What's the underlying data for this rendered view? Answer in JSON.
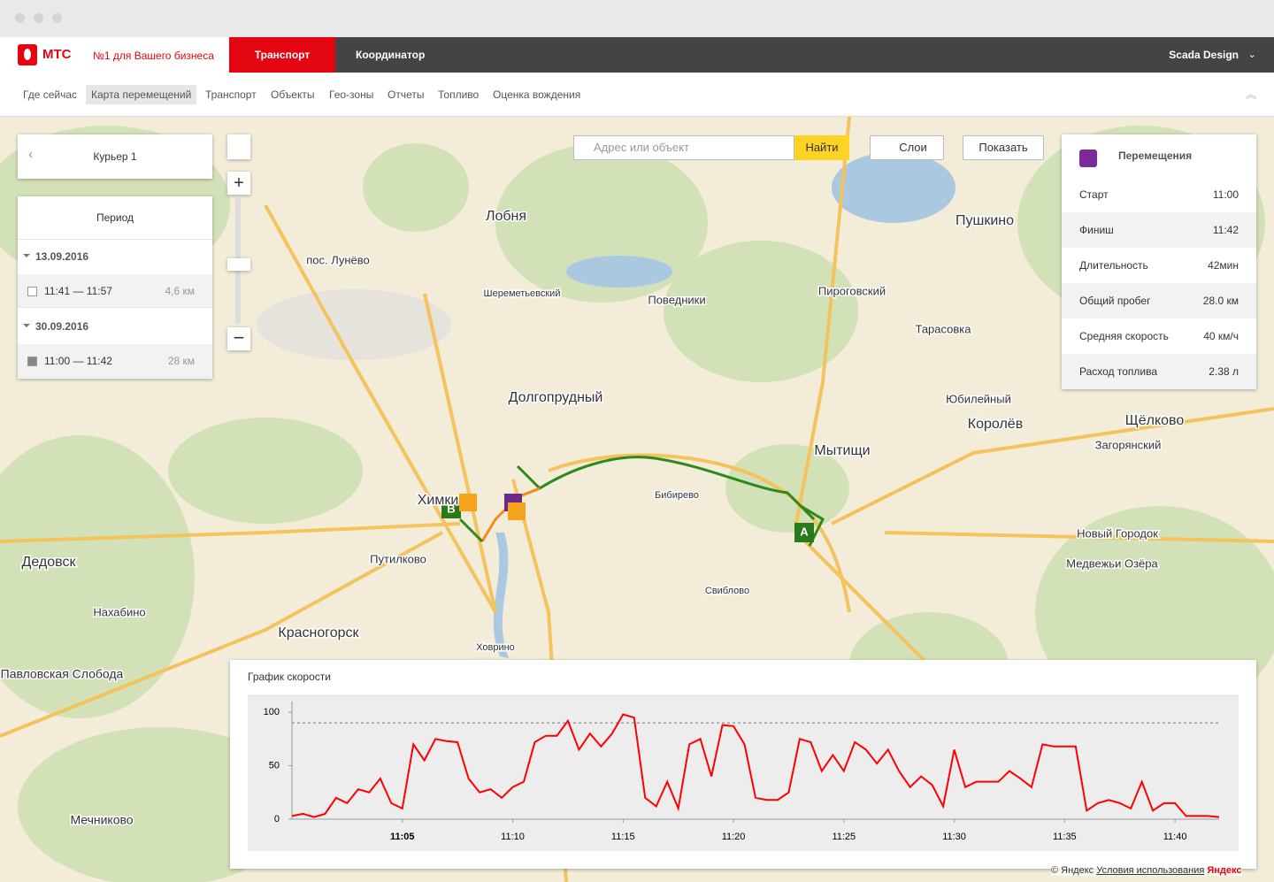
{
  "header": {
    "logo": "МТС",
    "slogan": "№1 для Вашего бизнеса",
    "tabs": [
      "Транспорт",
      "Координатор"
    ],
    "user": "Scada Design"
  },
  "subnav": [
    "Где сейчас",
    "Карта перемещений",
    "Транспорт",
    "Объекты",
    "Гео-зоны",
    "Отчеты",
    "Топливо",
    "Оценка вождения"
  ],
  "left_panel": {
    "courier": "Курьер 1",
    "period_title": "Период",
    "groups": [
      {
        "date": "13.09.2016",
        "trips": [
          {
            "time": "11:41 — 11:57",
            "distance": "4,6 км",
            "checked": false
          }
        ]
      },
      {
        "date": "30.09.2016",
        "trips": [
          {
            "time": "11:00 — 11:42",
            "distance": "28 км",
            "checked": true
          }
        ]
      }
    ]
  },
  "search": {
    "placeholder": "Адрес или объект",
    "button": "Найти",
    "layers": "Слои",
    "show": "Показать"
  },
  "right_panel": {
    "title": "Перемещения",
    "rows": [
      [
        "Старт",
        "11:00"
      ],
      [
        "Финиш",
        "11:42"
      ],
      [
        "Длительность",
        "42мин"
      ],
      [
        "Общий пробег",
        "28.0 км"
      ],
      [
        "Средняя скорость",
        "40 км/ч"
      ],
      [
        "Расход топлива",
        "2.38 л"
      ]
    ]
  },
  "map": {
    "labels": [
      "Лобня",
      "Долгопрудный",
      "Мытищи",
      "Пушкино",
      "Королёв",
      "Щёлково",
      "Дедовск",
      "Красногорск",
      "Нахабино",
      "Путилково",
      "Поведники",
      "Пироговский",
      "Тарасовка",
      "Юбилейный",
      "Загорянский",
      "Новый Городок",
      "Медвежьи Озёра",
      "Мечниково",
      "Павловская Слобода",
      "пос. Лунёво",
      "Химки",
      "Шереметьевский",
      "Бибирево",
      "Ховрино",
      "Свиблово"
    ],
    "markers": [
      "A",
      "B"
    ],
    "copyright": "© Яндекс",
    "terms": "Условия использования",
    "brand": "Яндекс"
  },
  "chart_data": {
    "type": "line",
    "title": "График скорости",
    "color": "#ff0000",
    "threshold": 90,
    "x": [
      0,
      0.5,
      1,
      1.5,
      2,
      2.5,
      3,
      3.5,
      4,
      4.5,
      5,
      5.5,
      6,
      6.5,
      7,
      7.5,
      8,
      8.5,
      9,
      9.5,
      10,
      10.5,
      11,
      11.5,
      12,
      12.5,
      13,
      13.5,
      14,
      14.5,
      15,
      15.5,
      16,
      16.5,
      17,
      17.5,
      18,
      18.5,
      19,
      19.5,
      20,
      20.5,
      21,
      21.5,
      22,
      22.5,
      23,
      23.5,
      24,
      24.5,
      25,
      25.5,
      26,
      26.5,
      27,
      27.5,
      28,
      28.5,
      29,
      29.5,
      30,
      30.5,
      31,
      31.5,
      32,
      32.5,
      33,
      33.5,
      34,
      34.5,
      35,
      35.5,
      36,
      36.5,
      37,
      37.5,
      38,
      38.5,
      39,
      39.5,
      40,
      40.5,
      41,
      41.5,
      42
    ],
    "values": [
      3,
      5,
      2,
      5,
      20,
      15,
      28,
      25,
      38,
      15,
      10,
      70,
      55,
      75,
      73,
      72,
      38,
      25,
      28,
      20,
      30,
      35,
      72,
      78,
      78,
      92,
      65,
      80,
      68,
      80,
      98,
      95,
      20,
      12,
      35,
      10,
      70,
      75,
      40,
      88,
      87,
      70,
      20,
      18,
      18,
      25,
      75,
      72,
      45,
      60,
      45,
      72,
      65,
      52,
      65,
      45,
      30,
      40,
      32,
      12,
      65,
      30,
      35,
      35,
      35,
      45,
      38,
      30,
      70,
      68,
      68,
      68,
      8,
      15,
      18,
      15,
      10,
      35,
      8,
      15,
      15,
      3,
      3,
      3,
      2
    ],
    "xlim": [
      0,
      42
    ],
    "ylim": [
      0,
      110
    ],
    "yticks": [
      0,
      50,
      100
    ],
    "xticks": [
      {
        "value": 5,
        "label": "11:05"
      },
      {
        "value": 10,
        "label": "11:10"
      },
      {
        "value": 15,
        "label": "11:15"
      },
      {
        "value": 20,
        "label": "11:20"
      },
      {
        "value": 25,
        "label": "11:25"
      },
      {
        "value": 30,
        "label": "11:30"
      },
      {
        "value": 35,
        "label": "11:35"
      },
      {
        "value": 40,
        "label": "11:40"
      }
    ]
  }
}
